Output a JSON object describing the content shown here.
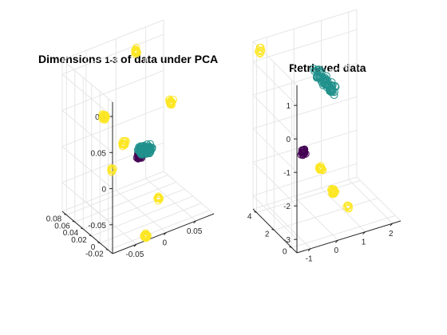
{
  "figure": {
    "background": "#ffffff"
  },
  "chart_data": [
    {
      "type": "scatter3d",
      "title_prefix": "Dimensions ",
      "title_range": "1-3",
      "title_suffix": " of data under PCA",
      "title": "Dimensions 1-3 of data under PCA",
      "grid": true,
      "marker": "open-circle",
      "x_ticks": [
        "-0.05",
        "0",
        "0.05"
      ],
      "y_ticks": [
        "-0.02",
        "0",
        "0.02",
        "0.04",
        "0.06",
        "0.08"
      ],
      "z_ticks": [
        "-0.05",
        "0",
        "0.05",
        "0.1"
      ],
      "xlim": [
        -0.09,
        0.08
      ],
      "ylim": [
        -0.03,
        0.09
      ],
      "zlim": [
        -0.09,
        0.12
      ],
      "series": [
        {
          "color": "#fde725",
          "clusters": [
            {
              "x": 0.03,
              "y": 0.085,
              "z": 0.095,
              "n": 20
            },
            {
              "x": -0.065,
              "y": 0.025,
              "z": 0.065,
              "n": 30
            },
            {
              "x": 0.05,
              "y": 0.03,
              "z": 0.045,
              "n": 22
            },
            {
              "x": -0.025,
              "y": 0.035,
              "z": 0.01,
              "n": 16
            },
            {
              "x": 0.005,
              "y": -0.005,
              "z": -0.055,
              "n": 14
            },
            {
              "x": -0.045,
              "y": -0.045,
              "z": -0.072,
              "n": 26
            },
            {
              "x": -0.06,
              "y": 0.015,
              "z": -0.005,
              "n": 12
            }
          ]
        },
        {
          "color": "#440154",
          "clusters": [
            {
              "x": -0.01,
              "y": 0.02,
              "z": -0.005,
              "n": 50
            }
          ]
        },
        {
          "color": "#21918c",
          "clusters": [
            {
              "x": 0.0,
              "y": 0.02,
              "z": 0.0,
              "n": 150
            }
          ]
        }
      ]
    },
    {
      "type": "scatter3d",
      "title": "Retrieved data",
      "grid": true,
      "marker": "open-circle",
      "x_ticks": [
        "-1",
        "0",
        "1",
        "2"
      ],
      "y_ticks": [
        "0",
        "2",
        "4"
      ],
      "z_ticks": [
        "-3",
        "-2",
        "-1",
        "0",
        "1"
      ],
      "xlim": [
        -1.5,
        2.3
      ],
      "ylim": [
        -0.6,
        4.4
      ],
      "zlim": [
        -3.4,
        1.6
      ],
      "series": [
        {
          "color": "#fde725",
          "clusters": [
            {
              "x": -1.5,
              "y": 3.6,
              "z": 1.5,
              "n": 8
            },
            {
              "x": 0.25,
              "y": 2.2,
              "z": -2.05,
              "n": 18
            },
            {
              "x": 0.55,
              "y": 1.6,
              "z": -2.65,
              "n": 24
            },
            {
              "x": 0.9,
              "y": 1.1,
              "z": -3.1,
              "n": 6
            }
          ]
        },
        {
          "color": "#440154",
          "clusters": [
            {
              "x": -0.2,
              "y": 2.7,
              "z": -1.6,
              "n": 18
            }
          ]
        },
        {
          "color": "#21918c",
          "clusters": [
            {
              "x": 0.9,
              "y": 3.6,
              "z": 0.0,
              "n": 70
            }
          ]
        }
      ]
    }
  ]
}
